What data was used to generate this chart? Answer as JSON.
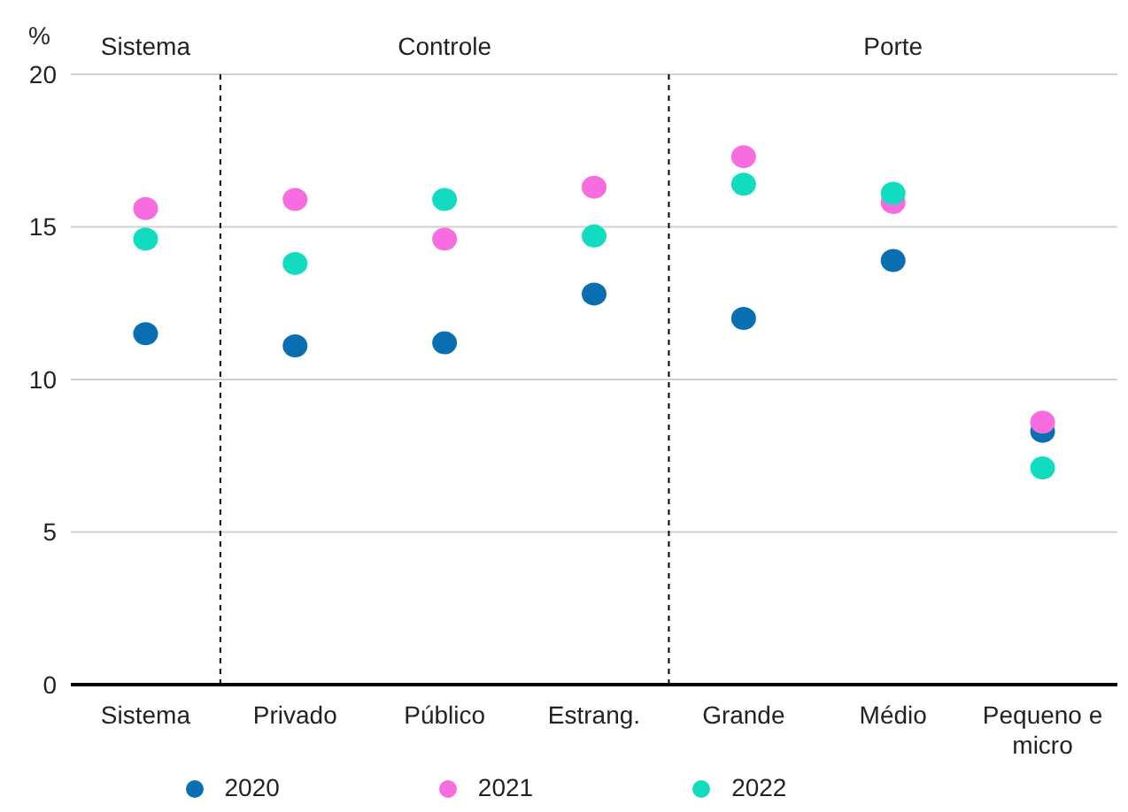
{
  "chart_data": {
    "type": "scatter",
    "ylabel": "%",
    "categories": [
      "Sistema",
      "Privado",
      "Público",
      "Estrang.",
      "Grande",
      "Médio",
      "Pequeno e micro"
    ],
    "series": [
      {
        "name": "2020",
        "color": "#0a6fb0",
        "values": [
          11.5,
          11.1,
          11.2,
          12.8,
          12.0,
          13.9,
          8.3
        ]
      },
      {
        "name": "2021",
        "color": "#f76de0",
        "values": [
          15.6,
          15.9,
          14.6,
          16.3,
          17.3,
          15.8,
          8.6
        ]
      },
      {
        "name": "2022",
        "color": "#12dcc0",
        "values": [
          14.6,
          13.8,
          15.9,
          14.7,
          16.4,
          16.1,
          7.1
        ]
      }
    ],
    "ylim": [
      0,
      20
    ],
    "yticks": [
      0,
      5,
      10,
      15,
      20
    ],
    "grid": "y",
    "legend": "bottom",
    "marker": "circle",
    "annotations": [
      "Sistema",
      "Controle",
      "Porte"
    ]
  }
}
